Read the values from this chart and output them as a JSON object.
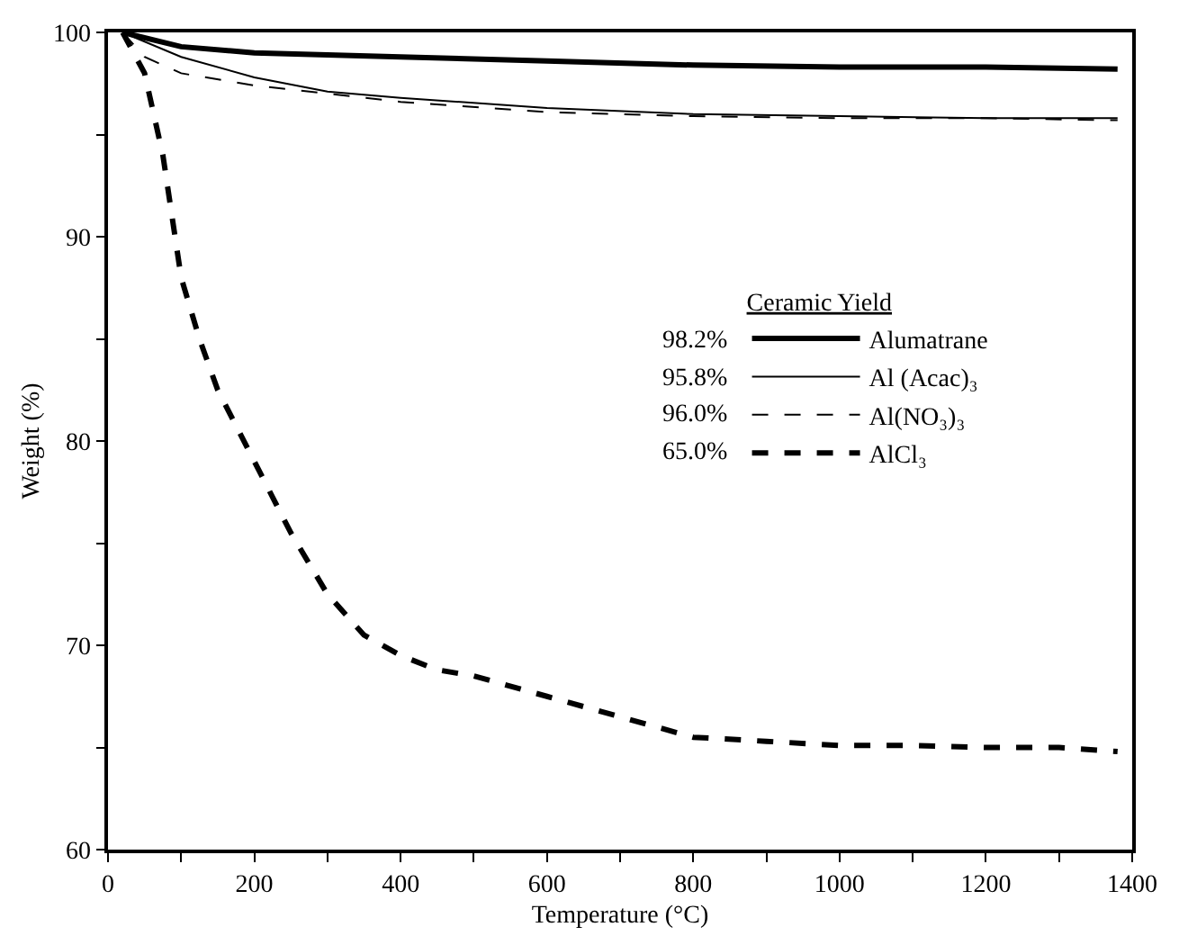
{
  "chart_data": {
    "type": "line",
    "xlabel": "Temperature (°C)",
    "ylabel": "Weight (%)",
    "legend_title": "Ceramic Yield",
    "legend": "right",
    "xlim": [
      0,
      1400
    ],
    "ylim": [
      60,
      100
    ],
    "xticks": [
      0,
      {
        "value": 100,
        "label": null
      },
      200,
      {
        "value": 300,
        "label": null
      },
      400,
      {
        "value": 500,
        "label": null
      },
      600,
      {
        "value": 700,
        "label": null
      },
      800,
      {
        "value": 900,
        "label": null
      },
      1000,
      {
        "value": 1100,
        "label": null
      },
      1200,
      {
        "value": 1300,
        "label": null
      },
      1400
    ],
    "yticks": [
      60,
      {
        "value": 65,
        "label": null
      },
      70,
      {
        "value": 75,
        "label": null
      },
      80,
      {
        "value": 85,
        "label": null
      },
      90,
      {
        "value": 95,
        "label": null
      },
      100
    ],
    "marker": "none",
    "annotations": [
      "98.2%",
      "95.8%",
      "96.0%",
      "65.0%"
    ],
    "series": [
      {
        "name": "Alumatrane",
        "color": "#000000",
        "line_style": "solid",
        "x": [
          20,
          100,
          200,
          400,
          600,
          800,
          1000,
          1200,
          1380
        ],
        "values": [
          100,
          99.3,
          99.0,
          98.8,
          98.6,
          98.4,
          98.3,
          98.3,
          98.2
        ]
      },
      {
        "name": "Al (Acac)₃",
        "color": "#000000",
        "line_style": "solid",
        "x": [
          20,
          100,
          200,
          300,
          400,
          600,
          800,
          1000,
          1200,
          1380
        ],
        "values": [
          100,
          98.8,
          97.8,
          97.1,
          96.8,
          96.3,
          96.0,
          95.9,
          95.8,
          95.8
        ]
      },
      {
        "name": "Al(NO₃)₃",
        "color": "#000000",
        "line_style": "dashed",
        "x": [
          20,
          50,
          100,
          200,
          300,
          400,
          600,
          800,
          1000,
          1200,
          1380
        ],
        "values": [
          100,
          98.8,
          98.0,
          97.4,
          97.0,
          96.6,
          96.1,
          95.9,
          95.8,
          95.8,
          95.7
        ]
      },
      {
        "name": "AlCl₃",
        "color": "#000000",
        "line_style": "dashed",
        "x": [
          20,
          50,
          75,
          100,
          125,
          150,
          200,
          250,
          300,
          350,
          400,
          450,
          500,
          600,
          700,
          800,
          900,
          1000,
          1100,
          1200,
          1300,
          1380
        ],
        "values": [
          100,
          98,
          94,
          88,
          85,
          82.5,
          79,
          75.5,
          72.5,
          70.5,
          69.5,
          68.8,
          68.5,
          67.5,
          66.5,
          65.5,
          65.3,
          65.1,
          65.1,
          65.0,
          65.0,
          64.8
        ]
      }
    ]
  }
}
